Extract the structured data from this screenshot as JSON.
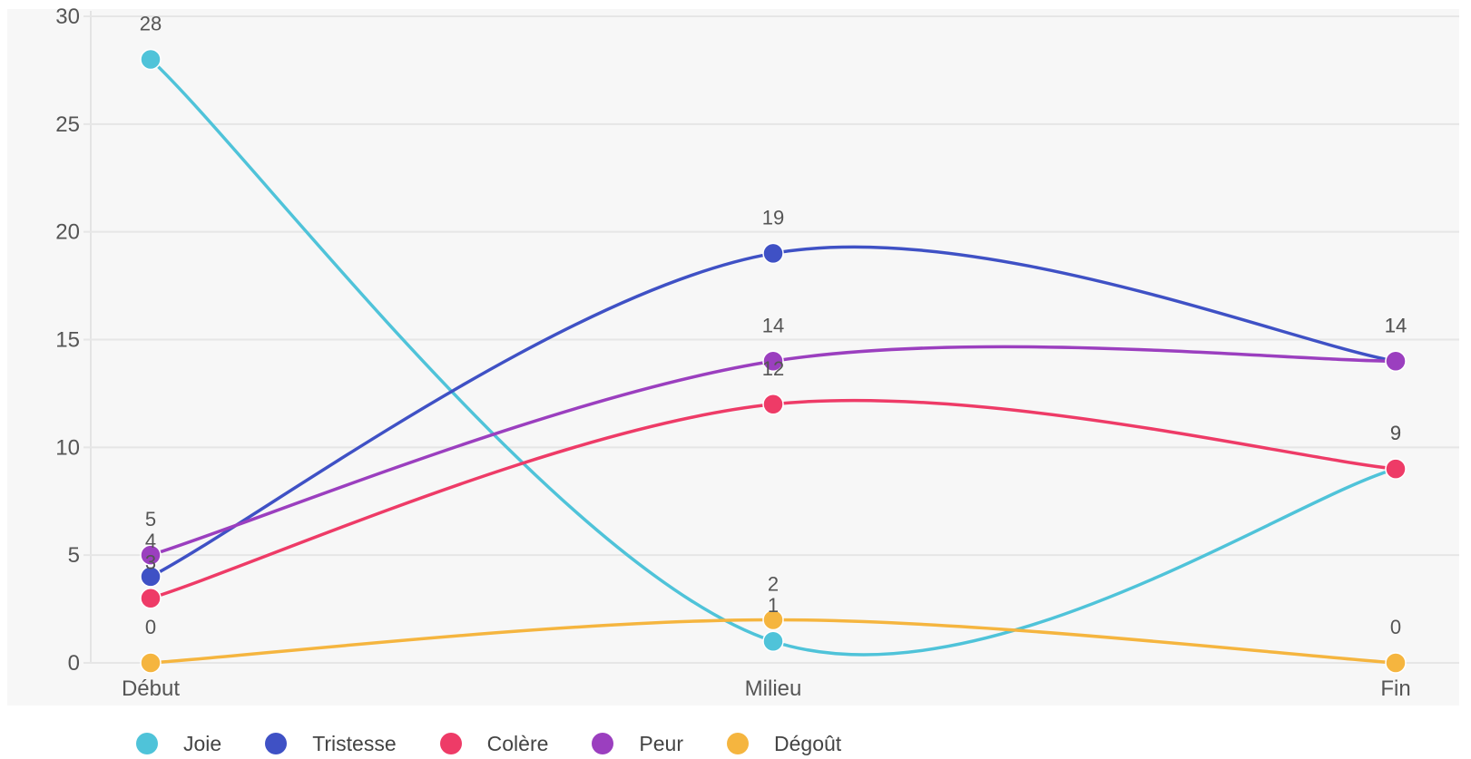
{
  "chart_data": {
    "type": "line",
    "categories": [
      "Début",
      "Milieu",
      "Fin"
    ],
    "ylim": [
      0,
      30
    ],
    "yticks": [
      0,
      5,
      10,
      15,
      20,
      25,
      30
    ],
    "grid": true,
    "legend_position": "bottom-left",
    "series": [
      {
        "name": "Joie",
        "color": "#4fc3d9",
        "values": [
          28,
          1,
          9
        ]
      },
      {
        "name": "Tristesse",
        "color": "#3f51c5",
        "values": [
          4,
          19,
          14
        ]
      },
      {
        "name": "Colère",
        "color": "#ee3b67",
        "values": [
          3,
          12,
          9
        ]
      },
      {
        "name": "Peur",
        "color": "#9b3fbf",
        "values": [
          5,
          14,
          14
        ]
      },
      {
        "name": "Dégoût",
        "color": "#f5b53f",
        "values": [
          0,
          2,
          0
        ]
      }
    ]
  }
}
